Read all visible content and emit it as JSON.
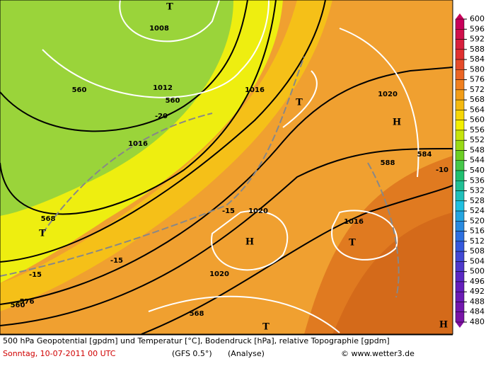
{
  "legend": {
    "levels": [
      600,
      596,
      592,
      588,
      584,
      580,
      576,
      572,
      568,
      564,
      560,
      556,
      552,
      548,
      544,
      540,
      536,
      532,
      528,
      524,
      520,
      516,
      512,
      508,
      504,
      500,
      496,
      492,
      488,
      484,
      480
    ]
  },
  "map_labels": [
    "T",
    "1008",
    "560",
    "1012",
    "560",
    "1016",
    "T",
    "1020",
    "H",
    "-20",
    "1016",
    "584",
    "588",
    "-10",
    "-15",
    "1020",
    "568",
    "T",
    "1016",
    "H",
    "T",
    "-15",
    "1020",
    "-15",
    "576",
    "560",
    "568",
    "T",
    "H"
  ],
  "footer": {
    "description": "500 hPa Geopotential [gpdm] und Temperatur [°C], Bodendruck [hPa], relative Topographie [gpdm]",
    "date": "Sonntag, 10-07-2011  00 UTC",
    "model": "(GFS 0.5°)",
    "run": "(Analyse)",
    "copyright": "© www.wetter3.de"
  }
}
